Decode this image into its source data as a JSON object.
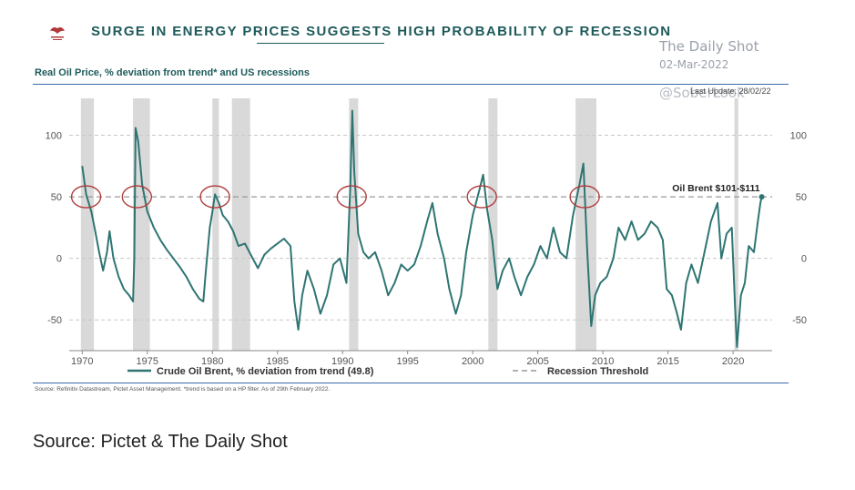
{
  "header": {
    "title": "SURGE IN ENERGY PRICES SUGGESTS HIGH PROBABILITY OF RECESSION",
    "logo_icon": "pictet-logo-icon"
  },
  "watermark": {
    "line1": "The Daily Shot",
    "line2": "02-Mar-2022",
    "line3": "@SoberLook"
  },
  "last_update": "Last Update: 28/02/22",
  "footnote": "Source: Refinitiv Datastream, Pictet Asset Management. *trend is based on a HP filter. As of 29th February 2022.",
  "caption": "Source: Pictet & The Daily Shot",
  "colors": {
    "series": "#2e7572",
    "recession": "#d9d9d9",
    "circle": "#b03a3a",
    "title": "#1e5a5a"
  },
  "chart_data": {
    "type": "line",
    "subtitle": "Real Oil Price, % deviation from trend* and US recessions",
    "annotation": "Oil Brent $101-$111",
    "xlim": [
      1969,
      2023
    ],
    "ylim": [
      -75,
      130
    ],
    "x_ticks": [
      "1970",
      "1975",
      "1980",
      "1985",
      "1990",
      "1995",
      "2000",
      "2005",
      "2010",
      "2015",
      "2020"
    ],
    "y_ticks_left": [
      "100",
      "50",
      "0",
      "-50"
    ],
    "y_ticks_right": [
      "100",
      "50",
      "0",
      "-50"
    ],
    "y_tick_values": [
      100,
      50,
      0,
      -50
    ],
    "threshold": {
      "name": "Recession Threshold",
      "value": 50
    },
    "recessions": [
      [
        1969.9,
        1970.9
      ],
      [
        1973.9,
        1975.2
      ],
      [
        1980.0,
        1980.5
      ],
      [
        1981.5,
        1982.9
      ],
      [
        1990.5,
        1991.2
      ],
      [
        2001.2,
        2001.9
      ],
      [
        2007.9,
        2009.5
      ],
      [
        2020.1,
        2020.4
      ]
    ],
    "circles": [
      1970.3,
      1974.2,
      1980.2,
      1990.7,
      2000.7,
      2008.6
    ],
    "series": [
      {
        "name": "Crude Oil Brent, % deviation from trend (49.8)",
        "points": [
          [
            1970.0,
            75
          ],
          [
            1970.3,
            52
          ],
          [
            1970.7,
            38
          ],
          [
            1971.0,
            22
          ],
          [
            1971.3,
            5
          ],
          [
            1971.6,
            -10
          ],
          [
            1971.9,
            5
          ],
          [
            1972.1,
            22
          ],
          [
            1972.4,
            0
          ],
          [
            1972.8,
            -15
          ],
          [
            1973.2,
            -25
          ],
          [
            1973.6,
            -30
          ],
          [
            1973.9,
            -35
          ],
          [
            1974.0,
            0
          ],
          [
            1974.1,
            106
          ],
          [
            1974.3,
            95
          ],
          [
            1974.6,
            60
          ],
          [
            1975.0,
            38
          ],
          [
            1975.5,
            25
          ],
          [
            1976.0,
            15
          ],
          [
            1976.5,
            7
          ],
          [
            1977.0,
            0
          ],
          [
            1977.5,
            -7
          ],
          [
            1978.0,
            -15
          ],
          [
            1978.5,
            -25
          ],
          [
            1979.0,
            -33
          ],
          [
            1979.3,
            -35
          ],
          [
            1979.5,
            -10
          ],
          [
            1979.8,
            25
          ],
          [
            1980.0,
            38
          ],
          [
            1980.2,
            52
          ],
          [
            1980.5,
            45
          ],
          [
            1980.8,
            35
          ],
          [
            1981.2,
            30
          ],
          [
            1981.6,
            22
          ],
          [
            1982.0,
            10
          ],
          [
            1982.5,
            12
          ],
          [
            1983.0,
            2
          ],
          [
            1983.5,
            -8
          ],
          [
            1984.0,
            3
          ],
          [
            1984.5,
            8
          ],
          [
            1985.0,
            12
          ],
          [
            1985.5,
            16
          ],
          [
            1986.0,
            10
          ],
          [
            1986.3,
            -35
          ],
          [
            1986.6,
            -58
          ],
          [
            1986.9,
            -30
          ],
          [
            1987.3,
            -10
          ],
          [
            1987.8,
            -25
          ],
          [
            1988.3,
            -45
          ],
          [
            1988.8,
            -30
          ],
          [
            1989.3,
            -5
          ],
          [
            1989.8,
            0
          ],
          [
            1990.3,
            -20
          ],
          [
            1990.6,
            60
          ],
          [
            1990.75,
            120
          ],
          [
            1990.9,
            70
          ],
          [
            1991.2,
            20
          ],
          [
            1991.6,
            5
          ],
          [
            1992.0,
            0
          ],
          [
            1992.5,
            5
          ],
          [
            1993.0,
            -10
          ],
          [
            1993.5,
            -30
          ],
          [
            1994.0,
            -20
          ],
          [
            1994.5,
            -5
          ],
          [
            1995.0,
            -10
          ],
          [
            1995.5,
            -5
          ],
          [
            1996.0,
            10
          ],
          [
            1996.5,
            30
          ],
          [
            1996.9,
            45
          ],
          [
            1997.3,
            20
          ],
          [
            1997.8,
            0
          ],
          [
            1998.2,
            -25
          ],
          [
            1998.7,
            -45
          ],
          [
            1999.1,
            -30
          ],
          [
            1999.5,
            5
          ],
          [
            2000.0,
            35
          ],
          [
            2000.5,
            55
          ],
          [
            2000.8,
            68
          ],
          [
            2001.1,
            40
          ],
          [
            2001.5,
            15
          ],
          [
            2001.9,
            -25
          ],
          [
            2002.3,
            -10
          ],
          [
            2002.8,
            0
          ],
          [
            2003.2,
            -15
          ],
          [
            2003.7,
            -30
          ],
          [
            2004.2,
            -15
          ],
          [
            2004.7,
            -5
          ],
          [
            2005.2,
            10
          ],
          [
            2005.7,
            0
          ],
          [
            2006.2,
            25
          ],
          [
            2006.7,
            5
          ],
          [
            2007.2,
            0
          ],
          [
            2007.7,
            35
          ],
          [
            2008.2,
            60
          ],
          [
            2008.5,
            77
          ],
          [
            2008.8,
            5
          ],
          [
            2009.1,
            -55
          ],
          [
            2009.4,
            -30
          ],
          [
            2009.8,
            -20
          ],
          [
            2010.3,
            -15
          ],
          [
            2010.8,
            0
          ],
          [
            2011.2,
            25
          ],
          [
            2011.7,
            15
          ],
          [
            2012.2,
            30
          ],
          [
            2012.7,
            15
          ],
          [
            2013.2,
            20
          ],
          [
            2013.7,
            30
          ],
          [
            2014.2,
            25
          ],
          [
            2014.6,
            15
          ],
          [
            2014.9,
            -25
          ],
          [
            2015.3,
            -30
          ],
          [
            2015.7,
            -45
          ],
          [
            2016.0,
            -58
          ],
          [
            2016.4,
            -20
          ],
          [
            2016.8,
            -5
          ],
          [
            2017.3,
            -20
          ],
          [
            2017.8,
            5
          ],
          [
            2018.3,
            30
          ],
          [
            2018.8,
            45
          ],
          [
            2019.1,
            0
          ],
          [
            2019.5,
            20
          ],
          [
            2019.9,
            25
          ],
          [
            2020.15,
            -40
          ],
          [
            2020.3,
            -72
          ],
          [
            2020.6,
            -30
          ],
          [
            2020.9,
            -20
          ],
          [
            2021.2,
            10
          ],
          [
            2021.6,
            5
          ],
          [
            2021.9,
            30
          ],
          [
            2022.1,
            45
          ],
          [
            2022.2,
            50
          ]
        ]
      },
      {
        "name": "Recession Threshold"
      }
    ]
  }
}
